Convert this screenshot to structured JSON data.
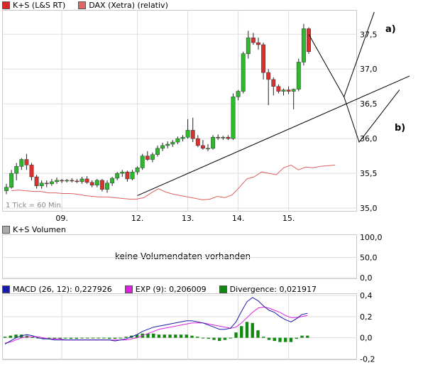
{
  "legend_top": [
    {
      "label": "K+S (L&S RT)",
      "color": "#d9262b"
    },
    {
      "label": "DAX (Xetra) (relativ)",
      "color": "#e06666"
    }
  ],
  "legend_volume": {
    "label": "K+S Volumen",
    "color": "#aaaaaa"
  },
  "legend_macd": [
    {
      "label": "MACD (26, 12): 0,227926",
      "color": "#1a1aa8"
    },
    {
      "label": "EXP (9): 0,206009",
      "color": "#e020e0"
    },
    {
      "label": "Divergence: 0,021917",
      "color": "#118811"
    }
  ],
  "annotations": {
    "a": "a)",
    "b": "b)"
  },
  "tick_note": "1 Tick = 60 Min.",
  "volume_text": "keine Volumendaten vorhanden",
  "colors": {
    "up": "#2db82d",
    "down": "#d93030",
    "dax": "#e06060",
    "grid": "#dddddd",
    "macd": "#1a1aa8",
    "exp": "#e020e0",
    "div": "#118811"
  },
  "chart_data": [
    {
      "type": "candlestick",
      "title": "K+S (L&S RT)",
      "x_ticks": [
        "09.",
        "12.",
        "13.",
        "14.",
        "15."
      ],
      "x_tick_index": [
        11,
        26,
        36,
        46,
        56
      ],
      "y_ticks": [
        "37,5",
        "37,0",
        "36,5",
        "36,0",
        "35,5",
        "35,0"
      ],
      "y_tick_values": [
        37.5,
        37.0,
        36.5,
        36.0,
        35.5,
        35.0
      ],
      "ylim": [
        34.95,
        37.85
      ],
      "candles": [
        [
          35.25,
          35.35,
          35.2,
          35.3
        ],
        [
          35.3,
          35.55,
          35.28,
          35.5
        ],
        [
          35.5,
          35.65,
          35.4,
          35.6
        ],
        [
          35.6,
          35.72,
          35.55,
          35.7
        ],
        [
          35.7,
          35.78,
          35.55,
          35.62
        ],
        [
          35.62,
          35.65,
          35.4,
          35.45
        ],
        [
          35.45,
          35.48,
          35.28,
          35.32
        ],
        [
          35.32,
          35.4,
          35.28,
          35.36
        ],
        [
          35.36,
          35.4,
          35.3,
          35.35
        ],
        [
          35.35,
          35.42,
          35.32,
          35.38
        ],
        [
          35.38,
          35.44,
          35.35,
          35.4
        ],
        [
          35.4,
          35.42,
          35.36,
          35.39
        ],
        [
          35.39,
          35.42,
          35.37,
          35.4
        ],
        [
          35.4,
          35.43,
          35.37,
          35.39
        ],
        [
          35.39,
          35.42,
          35.36,
          35.38
        ],
        [
          35.38,
          35.45,
          35.35,
          35.42
        ],
        [
          35.42,
          35.46,
          35.35,
          35.37
        ],
        [
          35.37,
          35.4,
          35.3,
          35.33
        ],
        [
          35.33,
          35.42,
          35.3,
          35.4
        ],
        [
          35.4,
          35.42,
          35.24,
          35.27
        ],
        [
          35.27,
          35.4,
          35.22,
          35.36
        ],
        [
          35.36,
          35.45,
          35.32,
          35.43
        ],
        [
          35.43,
          35.52,
          35.4,
          35.5
        ],
        [
          35.5,
          35.55,
          35.45,
          35.52
        ],
        [
          35.52,
          35.54,
          35.38,
          35.42
        ],
        [
          35.42,
          35.55,
          35.4,
          35.52
        ],
        [
          35.52,
          35.6,
          35.48,
          35.58
        ],
        [
          35.58,
          35.78,
          35.55,
          35.75
        ],
        [
          35.75,
          35.82,
          35.68,
          35.7
        ],
        [
          35.7,
          35.8,
          35.66,
          35.77
        ],
        [
          35.77,
          35.9,
          35.74,
          35.86
        ],
        [
          35.86,
          35.94,
          35.82,
          35.9
        ],
        [
          35.9,
          35.96,
          35.86,
          35.92
        ],
        [
          35.92,
          35.98,
          35.88,
          35.95
        ],
        [
          35.95,
          36.03,
          35.92,
          36.0
        ],
        [
          36.0,
          36.05,
          35.96,
          36.02
        ],
        [
          36.02,
          36.28,
          36.0,
          36.12
        ],
        [
          36.12,
          36.3,
          35.95,
          36.0
        ],
        [
          36.0,
          36.05,
          35.88,
          35.9
        ],
        [
          35.9,
          35.98,
          35.84,
          35.86
        ],
        [
          35.86,
          35.92,
          35.82,
          35.86
        ],
        [
          35.86,
          36.05,
          35.84,
          36.02
        ],
        [
          36.02,
          36.06,
          35.98,
          36.01
        ],
        [
          36.01,
          36.04,
          35.98,
          36.02
        ],
        [
          36.02,
          36.05,
          35.98,
          36.0
        ],
        [
          36.0,
          36.65,
          35.98,
          36.6
        ],
        [
          36.6,
          36.7,
          36.55,
          36.68
        ],
        [
          36.68,
          37.25,
          36.65,
          37.22
        ],
        [
          37.22,
          37.55,
          37.15,
          37.45
        ],
        [
          37.45,
          37.52,
          37.35,
          37.38
        ],
        [
          37.38,
          37.45,
          37.28,
          37.35
        ],
        [
          37.35,
          37.38,
          36.85,
          36.95
        ],
        [
          36.95,
          37.0,
          36.48,
          36.85
        ],
        [
          36.85,
          36.88,
          36.62,
          36.75
        ],
        [
          36.75,
          36.78,
          36.65,
          36.68
        ],
        [
          36.68,
          36.72,
          36.62,
          36.7
        ],
        [
          36.7,
          36.75,
          36.64,
          36.68
        ],
        [
          36.68,
          36.72,
          36.42,
          36.71
        ],
        [
          36.71,
          37.15,
          36.68,
          37.1
        ],
        [
          37.1,
          37.65,
          37.05,
          37.58
        ],
        [
          37.58,
          37.6,
          37.22,
          37.25
        ]
      ],
      "dax_relative": [
        35.25,
        35.26,
        35.25,
        35.24,
        35.24,
        35.22,
        35.22,
        35.21,
        35.21,
        35.2,
        35.18,
        35.17,
        35.16,
        35.16,
        35.15,
        35.14,
        35.13,
        35.13,
        35.15,
        35.22,
        35.28,
        35.23,
        35.2,
        35.18,
        35.16,
        35.14,
        35.12,
        35.13,
        35.17,
        35.15,
        35.19,
        35.3,
        35.42,
        35.45,
        35.52,
        35.5,
        35.48,
        35.58,
        35.62,
        35.55,
        35.59,
        35.58,
        35.6,
        35.61,
        35.62
      ],
      "trendline": {
        "from": [
          26,
          35.18
        ],
        "to": [
          80,
          36.9
        ]
      },
      "scenario_a": [
        [
          60,
          37.5
        ],
        [
          67,
          36.6
        ],
        [
          73,
          37.82
        ]
      ],
      "scenario_b": [
        [
          67,
          36.6
        ],
        [
          70,
          35.95
        ],
        [
          78,
          36.7
        ]
      ]
    },
    {
      "type": "bar",
      "title": "K+S Volumen",
      "y_ticks": [
        "100,0",
        "50,0",
        "0,0"
      ],
      "values": []
    },
    {
      "type": "line",
      "title": "MACD (26, 12)",
      "y_ticks": [
        "0,4",
        "0,2",
        "0,0",
        "-0,2"
      ],
      "y_tick_values": [
        0.4,
        0.2,
        0.0,
        -0.2
      ],
      "ylim": [
        -0.21,
        0.42
      ],
      "series": [
        {
          "name": "MACD (26, 12): 0,227926",
          "values": [
            -0.06,
            -0.03,
            0.0,
            0.02,
            0.03,
            0.02,
            0.0,
            -0.01,
            -0.01,
            -0.02,
            -0.02,
            -0.02,
            -0.02,
            -0.02,
            -0.02,
            -0.02,
            -0.02,
            -0.02,
            -0.02,
            -0.02,
            -0.03,
            -0.02,
            -0.01,
            0.01,
            0.03,
            0.06,
            0.08,
            0.1,
            0.11,
            0.12,
            0.13,
            0.14,
            0.15,
            0.16,
            0.16,
            0.15,
            0.14,
            0.12,
            0.1,
            0.08,
            0.08,
            0.09,
            0.15,
            0.25,
            0.34,
            0.38,
            0.35,
            0.3,
            0.26,
            0.24,
            0.2,
            0.17,
            0.15,
            0.18,
            0.22,
            0.23
          ]
        },
        {
          "name": "EXP (9): 0,206009",
          "values": [
            -0.05,
            -0.04,
            -0.02,
            0.0,
            0.01,
            0.01,
            0.01,
            0.0,
            -0.01,
            -0.01,
            -0.01,
            -0.02,
            -0.02,
            -0.02,
            -0.02,
            -0.02,
            -0.02,
            -0.02,
            -0.02,
            -0.02,
            -0.02,
            -0.02,
            -0.02,
            -0.01,
            0.0,
            0.02,
            0.04,
            0.06,
            0.08,
            0.09,
            0.1,
            0.11,
            0.12,
            0.13,
            0.14,
            0.14,
            0.14,
            0.13,
            0.12,
            0.11,
            0.1,
            0.09,
            0.1,
            0.14,
            0.19,
            0.24,
            0.28,
            0.29,
            0.28,
            0.26,
            0.24,
            0.21,
            0.19,
            0.19,
            0.2,
            0.21
          ]
        },
        {
          "name": "Divergence: 0,021917",
          "values": [
            0.01,
            0.02,
            0.03,
            0.03,
            0.02,
            0.01,
            0.0,
            -0.01,
            -0.01,
            -0.01,
            -0.01,
            0.0,
            -0.01,
            -0.01,
            0.0,
            0.0,
            0.0,
            0.0,
            0.0,
            -0.01,
            -0.01,
            0.0,
            0.01,
            0.02,
            0.03,
            0.04,
            0.04,
            0.04,
            0.03,
            0.03,
            0.03,
            0.03,
            0.03,
            0.03,
            0.02,
            0.01,
            0.0,
            -0.01,
            -0.02,
            -0.03,
            -0.02,
            0.0,
            0.05,
            0.11,
            0.15,
            0.14,
            0.07,
            0.01,
            -0.02,
            -0.03,
            -0.04,
            -0.04,
            -0.04,
            -0.01,
            0.02,
            0.02
          ]
        }
      ]
    }
  ]
}
